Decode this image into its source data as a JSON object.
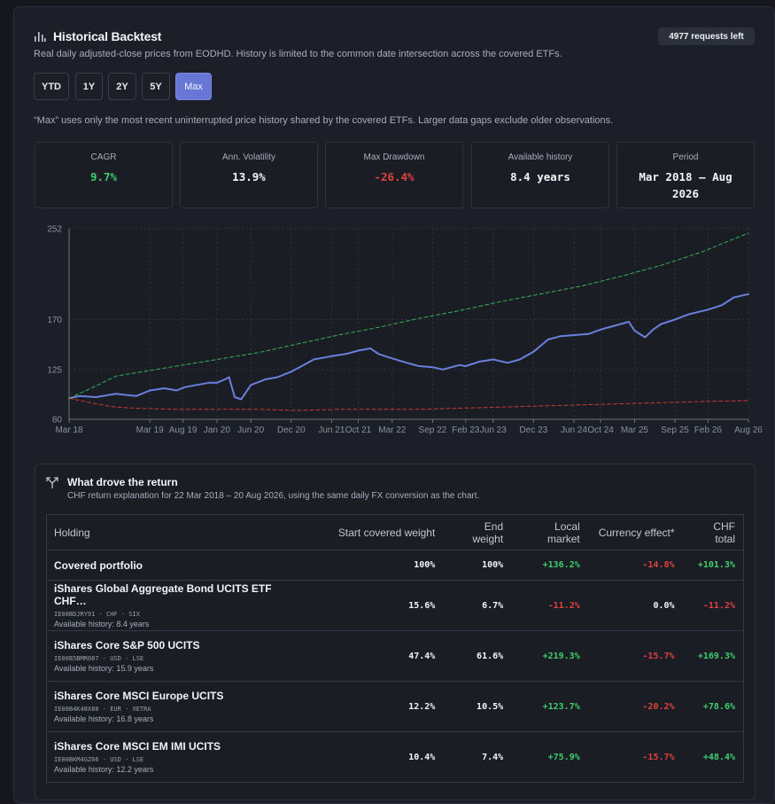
{
  "header": {
    "title": "Historical Backtest",
    "subtitle": "Real daily adjusted-close prices from EODHD. History is limited to the common date intersection across the covered ETFs.",
    "requests_badge": "4977 requests left"
  },
  "ranges": {
    "items": [
      {
        "label": "YTD",
        "active": false
      },
      {
        "label": "1Y",
        "active": false
      },
      {
        "label": "2Y",
        "active": false
      },
      {
        "label": "5Y",
        "active": false
      },
      {
        "label": "Max",
        "active": true
      }
    ]
  },
  "note": "“Max” uses only the most recent uninterrupted price history shared by the covered ETFs. Larger data gaps exclude older observations.",
  "stats": {
    "cagr": {
      "label": "CAGR",
      "value": "9.7%"
    },
    "volatility": {
      "label": "Ann. Volatility",
      "value": "13.9%"
    },
    "drawdown": {
      "label": "Max Drawdown",
      "value": "-26.4%"
    },
    "history": {
      "label": "Available history",
      "value": "8.4 years"
    },
    "period": {
      "label": "Period",
      "value": "Mar 2018 – Aug 2026"
    }
  },
  "colors": {
    "portfolio": "#6b7fdd",
    "upper_band": "#3cae56",
    "lower_band": "#c93b37",
    "positive": "#3ecf6e",
    "negative": "#e0413f",
    "accent": "#6876d6"
  },
  "chart_data": {
    "type": "line",
    "ylim": [
      80,
      252
    ],
    "y_ticks": [
      80,
      125,
      170,
      252
    ],
    "x_ticks": [
      "Mar 18",
      "Mar 19",
      "Aug 19",
      "Jan 20",
      "Jun 20",
      "Dec 20",
      "Jun 21",
      "Oct 21",
      "Mar 22",
      "Sep 22",
      "Feb 23",
      "Jun 23",
      "Dec 23",
      "Jun 24",
      "Oct 24",
      "Mar 25",
      "Sep 25",
      "Feb 26",
      "Aug 26"
    ],
    "x_tick_years": [
      2018.17,
      2019.17,
      2019.58,
      2020.0,
      2020.42,
      2020.92,
      2021.42,
      2021.75,
      2022.17,
      2022.67,
      2023.08,
      2023.42,
      2023.92,
      2024.42,
      2024.75,
      2025.17,
      2025.67,
      2026.08,
      2026.58
    ],
    "series": [
      {
        "key": "portfolio",
        "style": "solid",
        "x": [
          2018.17,
          2018.3,
          2018.5,
          2018.75,
          2019.0,
          2019.17,
          2019.35,
          2019.5,
          2019.6,
          2019.75,
          2019.9,
          2020.0,
          2020.1,
          2020.15,
          2020.22,
          2020.3,
          2020.42,
          2020.6,
          2020.75,
          2020.92,
          2021.05,
          2021.2,
          2021.42,
          2021.6,
          2021.75,
          2021.9,
          2022.0,
          2022.17,
          2022.35,
          2022.5,
          2022.67,
          2022.8,
          2023.0,
          2023.08,
          2023.25,
          2023.42,
          2023.6,
          2023.75,
          2023.92,
          2024.1,
          2024.25,
          2024.42,
          2024.6,
          2024.75,
          2024.9,
          2025.0,
          2025.1,
          2025.17,
          2025.3,
          2025.4,
          2025.5,
          2025.67,
          2025.85,
          2026.08,
          2026.25,
          2026.4,
          2026.58
        ],
        "y": [
          99,
          101,
          100,
          103,
          101,
          106,
          108,
          106,
          109,
          111,
          113,
          113,
          116,
          118,
          100,
          98,
          111,
          116,
          118,
          123,
          128,
          134,
          137,
          139,
          142,
          144,
          139,
          135,
          131,
          128,
          127,
          125,
          129,
          128,
          132,
          134,
          131,
          134,
          141,
          152,
          155,
          156,
          157,
          161,
          164,
          166,
          168,
          160,
          154,
          161,
          166,
          170,
          175,
          179,
          183,
          190,
          193
        ]
      },
      {
        "key": "upper_band",
        "style": "dashed",
        "x": [
          2018.17,
          2018.5,
          2018.75,
          2019.0,
          2019.5,
          2020.0,
          2020.5,
          2021.0,
          2021.5,
          2022.0,
          2022.5,
          2023.0,
          2023.5,
          2024.0,
          2024.5,
          2025.0,
          2025.5,
          2026.0,
          2026.58
        ],
        "y": [
          99,
          110,
          119,
          122,
          128,
          134,
          140,
          148,
          156,
          163,
          171,
          178,
          186,
          193,
          200,
          209,
          219,
          231,
          248
        ]
      },
      {
        "key": "lower_band",
        "style": "dashed",
        "x": [
          2018.17,
          2018.5,
          2018.75,
          2019.0,
          2019.5,
          2020.0,
          2020.5,
          2021.0,
          2021.5,
          2022.0,
          2022.5,
          2023.0,
          2023.5,
          2024.0,
          2024.5,
          2025.0,
          2025.5,
          2026.0,
          2026.58
        ],
        "y": [
          99,
          94,
          91,
          90,
          89,
          89,
          89,
          88,
          89,
          89,
          89,
          90,
          91,
          92,
          93,
          94,
          95,
          96,
          97
        ]
      }
    ]
  },
  "drove": {
    "title": "What drove the return",
    "subtitle": "CHF return explanation for 22 Mar 2018 – 20 Aug 2026, using the same daily FX conversion as the chart."
  },
  "table": {
    "headers": {
      "holding": "Holding",
      "start": "Start covered weight",
      "end": "End weight",
      "local": "Local market",
      "currency": "Currency effect*",
      "chf": "CHF total"
    },
    "total": {
      "name": "Covered portfolio",
      "start": "100%",
      "end": "100%",
      "local": "+136.2%",
      "currency": "-14.8%",
      "chf": "+101.3%"
    },
    "rows": [
      {
        "name": "iShares Global Aggregate Bond UCITS ETF CHF…",
        "meta": "IE00BDJRY91 · CHF · SIX",
        "history": "Available history: 8.4 years",
        "start": "15.6%",
        "end": "6.7%",
        "local": "-11.2%",
        "currency": "0.0%",
        "chf": "-11.2%"
      },
      {
        "name": "iShares Core S&P 500 UCITS",
        "meta": "IE00B5BMR087 · USD · LSE",
        "history": "Available history: 15.9 years",
        "start": "47.4%",
        "end": "61.6%",
        "local": "+219.3%",
        "currency": "-15.7%",
        "chf": "+169.3%"
      },
      {
        "name": "iShares Core MSCI Europe UCITS",
        "meta": "IE00B4K48X80 · EUR · XETRA",
        "history": "Available history: 16.8 years",
        "start": "12.2%",
        "end": "10.5%",
        "local": "+123.7%",
        "currency": "-20.2%",
        "chf": "+78.6%"
      },
      {
        "name": "iShares Core MSCI EM IMI UCITS",
        "meta": "IE00BKM4GZ66 · USD · LSE",
        "history": "Available history: 12.2 years",
        "start": "10.4%",
        "end": "7.4%",
        "local": "+75.9%",
        "currency": "-15.7%",
        "chf": "+48.4%"
      }
    ]
  }
}
